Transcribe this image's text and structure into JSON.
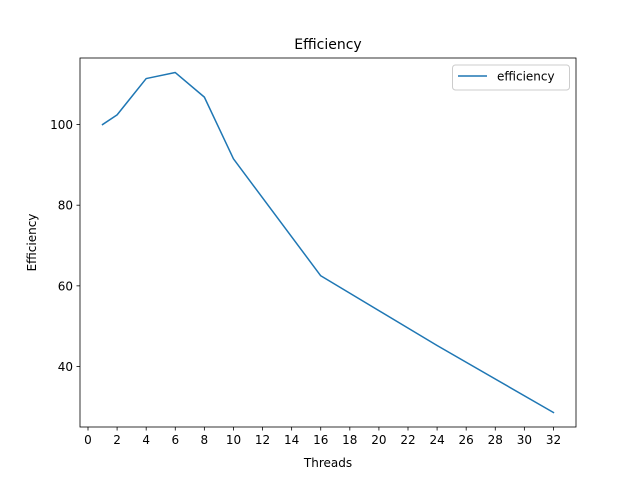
{
  "chart_data": {
    "type": "line",
    "title": "Efficiency",
    "xlabel": "Threads",
    "ylabel": "Efficiency",
    "xlim": [
      -0.55,
      33.55
    ],
    "ylim": [
      25.0,
      116.5
    ],
    "xticks": [
      0,
      2,
      4,
      6,
      8,
      10,
      12,
      14,
      16,
      18,
      20,
      22,
      24,
      26,
      28,
      30,
      32
    ],
    "yticks": [
      40,
      60,
      80,
      100
    ],
    "grid": false,
    "legend_position": "top-right",
    "series": [
      {
        "name": "efficiency",
        "color": "#1f77b4",
        "x": [
          1,
          2,
          4,
          6,
          8,
          10,
          16,
          24,
          32
        ],
        "y": [
          100.0,
          102.4,
          111.4,
          112.9,
          106.8,
          91.5,
          62.5,
          45.2,
          28.6
        ]
      }
    ]
  }
}
